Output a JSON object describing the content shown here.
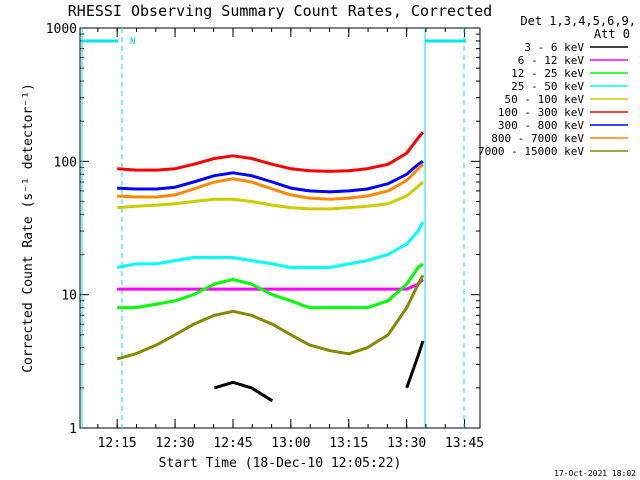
{
  "chart_data": {
    "type": "line",
    "title": "RHESSI Observing Summary Count Rates, Corrected",
    "xlabel": "Start Time (18-Dec-10 12:05:22)",
    "ylabel": "Corrected Count Rate (s⁻¹ detector⁻¹)",
    "x_ticks": [
      "12:15",
      "12:30",
      "12:45",
      "13:00",
      "13:15",
      "13:30",
      "13:45"
    ],
    "y_ticks": [
      "1",
      "10",
      "100",
      "1000"
    ],
    "yscale": "log",
    "ylim": [
      1,
      1000
    ],
    "xlim": [
      "12:05:22",
      "13:49:00"
    ],
    "legend_header": [
      "Det 1,3,4,5,6,9,",
      "Att 0"
    ],
    "legend_position": "right",
    "annotation_flag": "N",
    "timestamp": "17-Oct-2021 18:02",
    "x_hours": [
      12.25,
      12.33,
      12.42,
      12.5,
      12.58,
      12.67,
      12.75,
      12.83,
      12.92,
      13.0,
      13.08,
      13.17,
      13.25,
      13.33,
      13.42,
      13.5,
      13.55,
      13.57
    ],
    "series": [
      {
        "name": "3 - 6 keV",
        "color": "#000000",
        "values": [
          null,
          null,
          null,
          null,
          null,
          2.0,
          2.2,
          2.0,
          1.6,
          null,
          null,
          null,
          null,
          null,
          null,
          2.0,
          3.5,
          4.5
        ]
      },
      {
        "name": "6 - 12 keV",
        "color": "#ff00ff",
        "values": [
          11,
          11,
          11,
          11,
          11,
          11,
          11,
          11,
          11,
          11,
          11,
          11,
          11,
          11,
          11,
          11,
          12,
          13
        ]
      },
      {
        "name": "12 - 25 keV",
        "color": "#00ff00",
        "values": [
          8,
          8,
          8.5,
          9,
          10,
          12,
          13,
          12,
          10,
          9,
          8,
          8,
          8,
          8,
          9,
          12,
          16,
          17
        ]
      },
      {
        "name": "25 - 50 keV",
        "color": "#00ffff",
        "values": [
          16,
          17,
          17,
          18,
          19,
          19,
          19,
          18,
          17,
          16,
          16,
          16,
          17,
          18,
          20,
          24,
          30,
          35
        ]
      },
      {
        "name": "50 - 100 keV",
        "color": "#cccc00",
        "values": [
          45,
          46,
          47,
          48,
          50,
          52,
          52,
          50,
          47,
          45,
          44,
          44,
          45,
          46,
          48,
          55,
          65,
          70
        ]
      },
      {
        "name": "100 - 300 keV",
        "color": "#ff0000",
        "values": [
          88,
          86,
          86,
          88,
          95,
          105,
          110,
          105,
          95,
          88,
          85,
          84,
          85,
          88,
          95,
          115,
          150,
          165
        ]
      },
      {
        "name": "300 - 800 keV",
        "color": "#0000ff",
        "values": [
          63,
          62,
          62,
          64,
          70,
          78,
          82,
          78,
          70,
          63,
          60,
          59,
          60,
          62,
          68,
          80,
          95,
          100
        ]
      },
      {
        "name": "800 - 7000 keV",
        "color": "#ff8800",
        "values": [
          55,
          54,
          54,
          56,
          62,
          70,
          74,
          70,
          62,
          56,
          53,
          52,
          53,
          55,
          60,
          72,
          88,
          95
        ]
      },
      {
        "name": "7000 - 15000 keV",
        "color": "#888800",
        "values": [
          3.3,
          3.6,
          4.2,
          5.0,
          6.0,
          7.0,
          7.5,
          7.0,
          6.0,
          5.0,
          4.2,
          3.8,
          3.6,
          4.0,
          5.0,
          8,
          12,
          14
        ]
      }
    ]
  }
}
